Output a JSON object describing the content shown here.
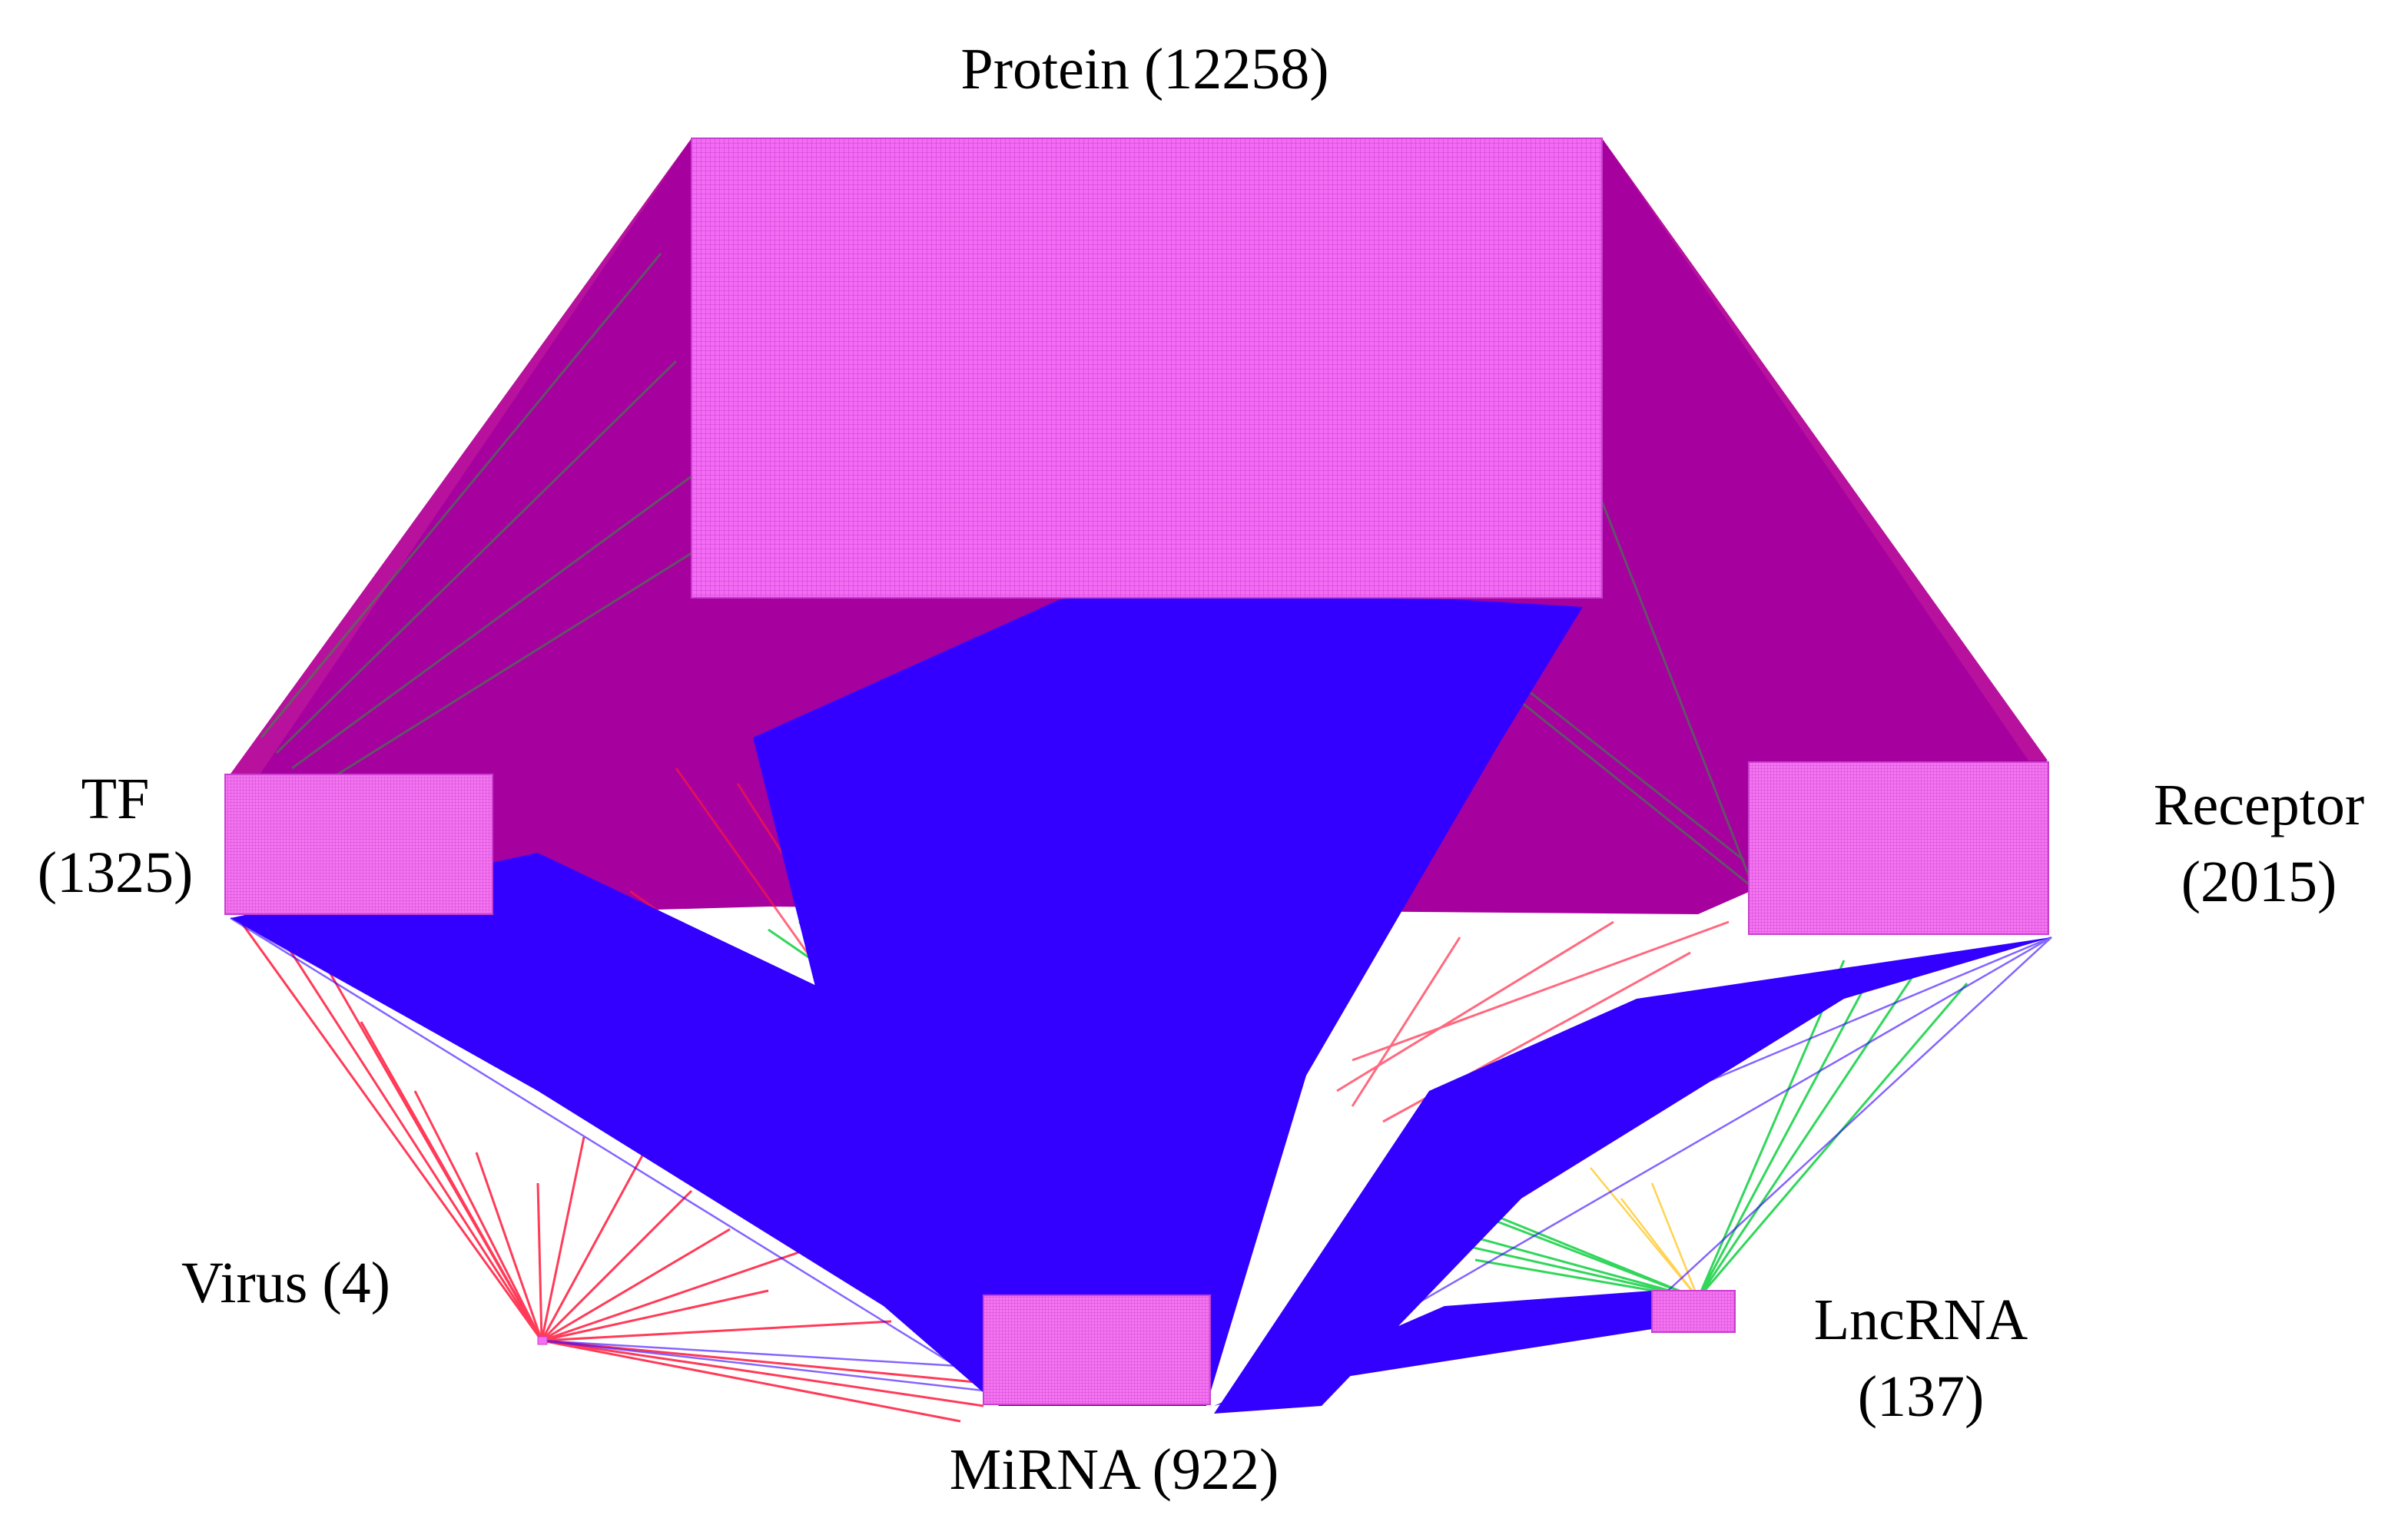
{
  "nodes": {
    "protein": {
      "line1": "Protein (12258)"
    },
    "tf": {
      "line1": "TF",
      "line2": "(1325)"
    },
    "receptor": {
      "line1": "Receptor",
      "line2": "(2015)"
    },
    "virus": {
      "line1": "Virus (4)"
    },
    "mirna": {
      "line1": "MiRNA (922)"
    },
    "lncrna": {
      "line1": "LncRNA",
      "line2": "(137)"
    }
  },
  "colors": {
    "node_fill": "#f46cf4",
    "node_grid": "#cc33cc",
    "edge_protein": "#a3009e",
    "edge_mirna": "#3300ff",
    "edge_virus": "#ff1a3c",
    "edge_lncrna": "#00cc33",
    "edge_minor": "#ffcc33"
  }
}
